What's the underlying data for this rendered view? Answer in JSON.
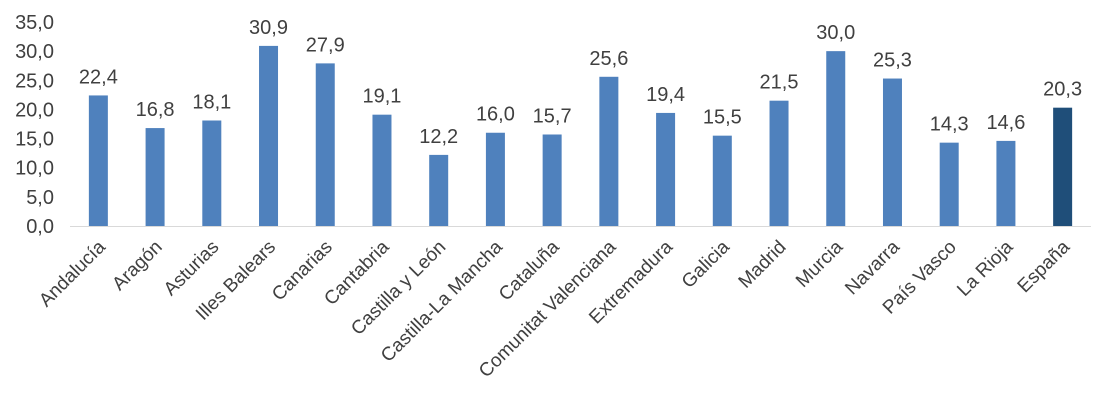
{
  "chart_data": {
    "type": "bar",
    "categories": [
      "Andalucía",
      "Aragón",
      "Asturias",
      "Illes Balears",
      "Canarias",
      "Cantabria",
      "Castilla y León",
      "Castilla-La Mancha",
      "Cataluña",
      "Comunitat Valenciana",
      "Extremadura",
      "Galicia",
      "Madrid",
      "Murcia",
      "Navarra",
      "País Vasco",
      "La Rioja",
      "España"
    ],
    "values": [
      22.4,
      16.8,
      18.1,
      30.9,
      27.9,
      19.1,
      12.2,
      16.0,
      15.7,
      25.6,
      19.4,
      15.5,
      21.5,
      30.0,
      25.3,
      14.3,
      14.6,
      20.3
    ],
    "data_labels": [
      "22,4",
      "16,8",
      "18,1",
      "30,9",
      "27,9",
      "19,1",
      "12,2",
      "16,0",
      "15,7",
      "25,6",
      "19,4",
      "15,5",
      "21,5",
      "30,0",
      "25,3",
      "14,3",
      "14,6",
      "20,3"
    ],
    "y_ticks": [
      "0,0",
      "5,0",
      "10,0",
      "15,0",
      "20,0",
      "25,0",
      "30,0",
      "35,0"
    ],
    "ylim": [
      0,
      35
    ],
    "grid": false,
    "legend": "none",
    "colors": {
      "bar": "#4F81BD",
      "highlight_bar": "#1F4E79",
      "highlight_category": "España",
      "axis": "#D9D9D9",
      "text": "#404040"
    }
  }
}
